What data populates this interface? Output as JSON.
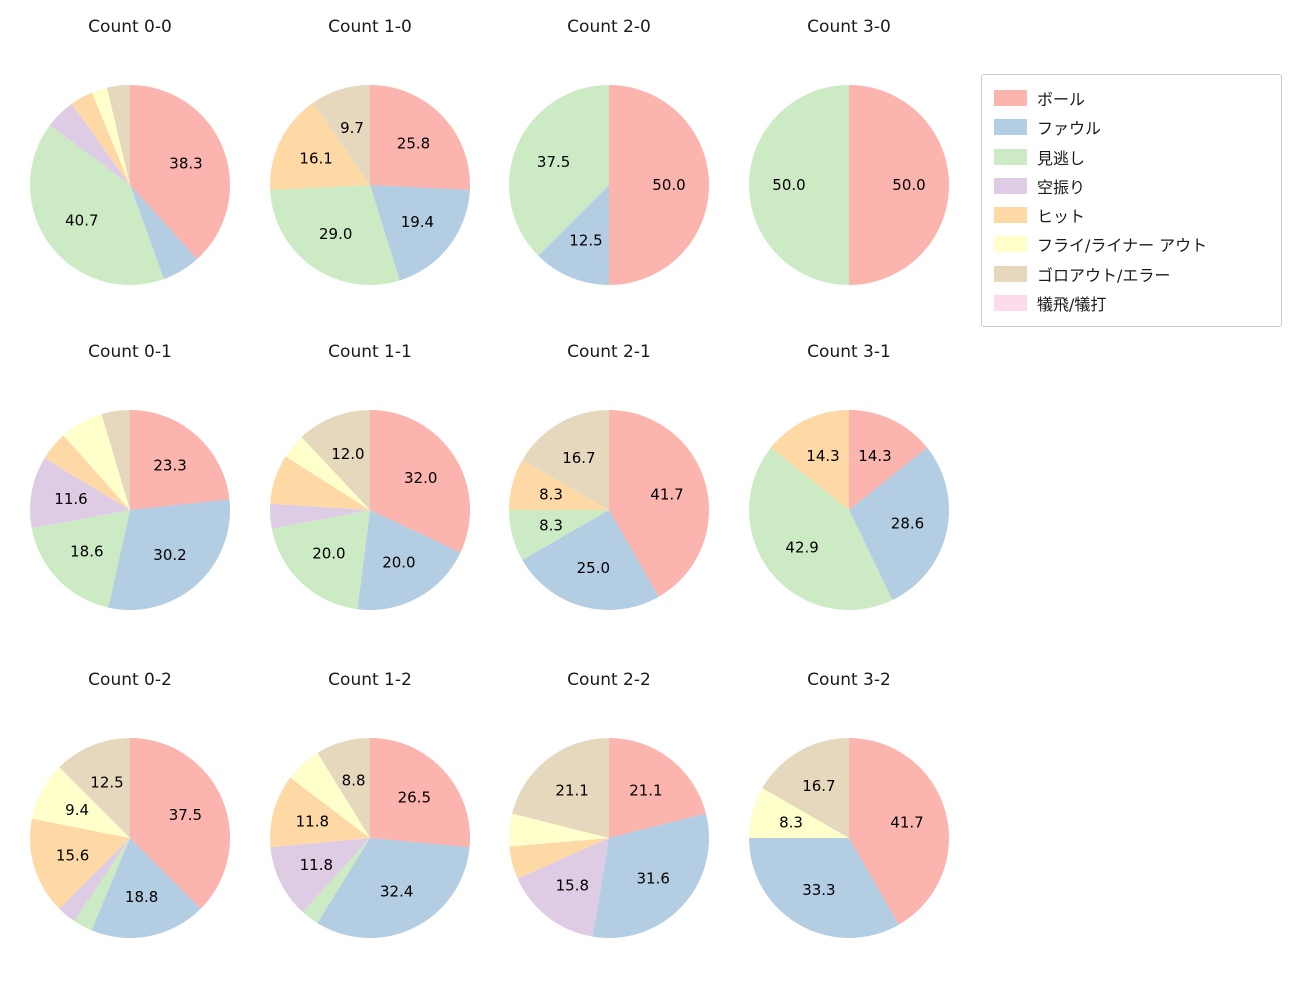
{
  "legend": {
    "border_color": "#cccccc",
    "items": [
      {
        "label": "ボール",
        "color": "#fbb4ae"
      },
      {
        "label": "ファウル",
        "color": "#b3cde3"
      },
      {
        "label": "見逃し",
        "color": "#ccebc5"
      },
      {
        "label": "空振り",
        "color": "#decbe4"
      },
      {
        "label": "ヒット",
        "color": "#fed9a6"
      },
      {
        "label": "フライ/ライナー アウト",
        "color": "#ffffcc"
      },
      {
        "label": "ゴロアウト/エラー",
        "color": "#e5d8bd"
      },
      {
        "label": "犠飛/犠打",
        "color": "#fddaec"
      }
    ]
  },
  "chart_data": [
    {
      "type": "pie",
      "title": "Count 0-0",
      "slices": [
        {
          "category": "ボール",
          "value": 38.3,
          "label": "38.3"
        },
        {
          "category": "ファウル",
          "value": 6.2,
          "label": ""
        },
        {
          "category": "見逃し",
          "value": 40.7,
          "label": "40.7"
        },
        {
          "category": "空振り",
          "value": 4.9,
          "label": ""
        },
        {
          "category": "ヒット",
          "value": 3.7,
          "label": ""
        },
        {
          "category": "フライ/ライナー アウト",
          "value": 2.5,
          "label": ""
        },
        {
          "category": "ゴロアウト/エラー",
          "value": 3.7,
          "label": ""
        }
      ]
    },
    {
      "type": "pie",
      "title": "Count 1-0",
      "slices": [
        {
          "category": "ボール",
          "value": 25.8,
          "label": "25.8"
        },
        {
          "category": "ファウル",
          "value": 19.4,
          "label": "19.4"
        },
        {
          "category": "見逃し",
          "value": 29.0,
          "label": "29.0"
        },
        {
          "category": "ヒット",
          "value": 16.1,
          "label": "16.1"
        },
        {
          "category": "ゴロアウト/エラー",
          "value": 9.7,
          "label": "9.7"
        }
      ]
    },
    {
      "type": "pie",
      "title": "Count 2-0",
      "slices": [
        {
          "category": "ボール",
          "value": 50.0,
          "label": "50.0"
        },
        {
          "category": "ファウル",
          "value": 12.5,
          "label": "12.5"
        },
        {
          "category": "見逃し",
          "value": 37.5,
          "label": "37.5"
        }
      ]
    },
    {
      "type": "pie",
      "title": "Count 3-0",
      "slices": [
        {
          "category": "ボール",
          "value": 50.0,
          "label": "50.0"
        },
        {
          "category": "見逃し",
          "value": 50.0,
          "label": "50.0"
        }
      ]
    },
    {
      "type": "pie",
      "title": "Count 0-1",
      "slices": [
        {
          "category": "ボール",
          "value": 23.3,
          "label": "23.3"
        },
        {
          "category": "ファウル",
          "value": 30.2,
          "label": "30.2"
        },
        {
          "category": "見逃し",
          "value": 18.6,
          "label": "18.6"
        },
        {
          "category": "空振り",
          "value": 11.6,
          "label": "11.6"
        },
        {
          "category": "ヒット",
          "value": 4.7,
          "label": ""
        },
        {
          "category": "フライ/ライナー アウト",
          "value": 7.0,
          "label": ""
        },
        {
          "category": "ゴロアウト/エラー",
          "value": 4.6,
          "label": ""
        }
      ]
    },
    {
      "type": "pie",
      "title": "Count 1-1",
      "slices": [
        {
          "category": "ボール",
          "value": 32.0,
          "label": "32.0"
        },
        {
          "category": "ファウル",
          "value": 20.0,
          "label": "20.0"
        },
        {
          "category": "見逃し",
          "value": 20.0,
          "label": "20.0"
        },
        {
          "category": "空振り",
          "value": 4.0,
          "label": ""
        },
        {
          "category": "ヒット",
          "value": 8.0,
          "label": ""
        },
        {
          "category": "フライ/ライナー アウト",
          "value": 4.0,
          "label": ""
        },
        {
          "category": "ゴロアウト/エラー",
          "value": 12.0,
          "label": "12.0"
        }
      ]
    },
    {
      "type": "pie",
      "title": "Count 2-1",
      "slices": [
        {
          "category": "ボール",
          "value": 41.7,
          "label": "41.7"
        },
        {
          "category": "ファウル",
          "value": 25.0,
          "label": "25.0"
        },
        {
          "category": "見逃し",
          "value": 8.3,
          "label": "8.3"
        },
        {
          "category": "ヒット",
          "value": 8.3,
          "label": "8.3"
        },
        {
          "category": "ゴロアウト/エラー",
          "value": 16.7,
          "label": "16.7"
        }
      ]
    },
    {
      "type": "pie",
      "title": "Count 3-1",
      "slices": [
        {
          "category": "ボール",
          "value": 14.3,
          "label": "14.3"
        },
        {
          "category": "ファウル",
          "value": 28.6,
          "label": "28.6"
        },
        {
          "category": "見逃し",
          "value": 42.9,
          "label": "42.9"
        },
        {
          "category": "ヒット",
          "value": 14.3,
          "label": "14.3"
        }
      ]
    },
    {
      "type": "pie",
      "title": "Count 0-2",
      "slices": [
        {
          "category": "ボール",
          "value": 37.5,
          "label": "37.5"
        },
        {
          "category": "ファウル",
          "value": 18.8,
          "label": "18.8"
        },
        {
          "category": "見逃し",
          "value": 3.1,
          "label": ""
        },
        {
          "category": "空振り",
          "value": 3.1,
          "label": ""
        },
        {
          "category": "ヒット",
          "value": 15.6,
          "label": "15.6"
        },
        {
          "category": "フライ/ライナー アウト",
          "value": 9.4,
          "label": "9.4"
        },
        {
          "category": "ゴロアウト/エラー",
          "value": 12.5,
          "label": "12.5"
        }
      ]
    },
    {
      "type": "pie",
      "title": "Count 1-2",
      "slices": [
        {
          "category": "ボール",
          "value": 26.5,
          "label": "26.5"
        },
        {
          "category": "ファウル",
          "value": 32.4,
          "label": "32.4"
        },
        {
          "category": "見逃し",
          "value": 2.9,
          "label": ""
        },
        {
          "category": "空振り",
          "value": 11.8,
          "label": "11.8"
        },
        {
          "category": "ヒット",
          "value": 11.8,
          "label": "11.8"
        },
        {
          "category": "フライ/ライナー アウト",
          "value": 5.9,
          "label": ""
        },
        {
          "category": "ゴロアウト/エラー",
          "value": 8.8,
          "label": "8.8"
        }
      ]
    },
    {
      "type": "pie",
      "title": "Count 2-2",
      "slices": [
        {
          "category": "ボール",
          "value": 21.1,
          "label": "21.1"
        },
        {
          "category": "ファウル",
          "value": 31.6,
          "label": "31.6"
        },
        {
          "category": "空振り",
          "value": 15.8,
          "label": "15.8"
        },
        {
          "category": "ヒット",
          "value": 5.3,
          "label": ""
        },
        {
          "category": "フライ/ライナー アウト",
          "value": 5.3,
          "label": ""
        },
        {
          "category": "ゴロアウト/エラー",
          "value": 21.1,
          "label": "21.1"
        }
      ]
    },
    {
      "type": "pie",
      "title": "Count 3-2",
      "slices": [
        {
          "category": "ボール",
          "value": 41.7,
          "label": "41.7"
        },
        {
          "category": "ファウル",
          "value": 33.3,
          "label": "33.3"
        },
        {
          "category": "フライ/ライナー アウト",
          "value": 8.3,
          "label": "8.3"
        },
        {
          "category": "ゴロアウト/エラー",
          "value": 16.7,
          "label": "16.7"
        }
      ]
    }
  ]
}
